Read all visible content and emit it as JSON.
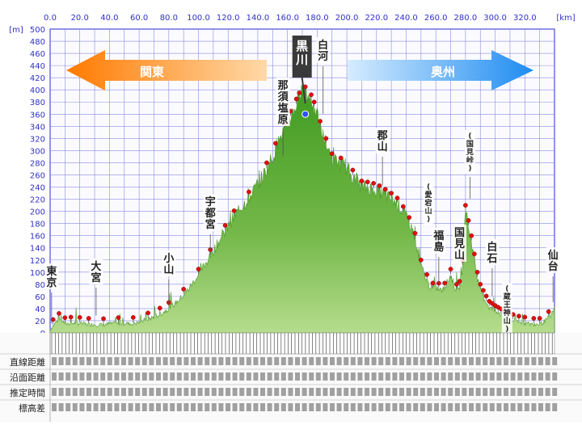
{
  "chart_data": {
    "type": "area",
    "x_unit": "[km]",
    "y_unit": "[m]",
    "xlim": [
      0,
      340
    ],
    "ylim": [
      0,
      500
    ],
    "x_ticks": [
      "0.0",
      "20.0",
      "40.0",
      "60.0",
      "80.0",
      "100.0",
      "120.0",
      "140.0",
      "160.0",
      "180.0",
      "200.0",
      "220.0",
      "240.0",
      "260.0",
      "280.0",
      "300.0",
      "320.0"
    ],
    "y_ticks": [
      "0",
      "20",
      "40",
      "60",
      "80",
      "100",
      "120",
      "140",
      "160",
      "180",
      "200",
      "220",
      "240",
      "260",
      "280",
      "300",
      "320",
      "340",
      "360",
      "380",
      "400",
      "420",
      "440",
      "460",
      "480",
      "500"
    ],
    "grid": true,
    "direction_left": "関東",
    "direction_right": "奥州",
    "top_label": "黒川",
    "profile": {
      "x": [
        0,
        2,
        4,
        6,
        8,
        10,
        14,
        18,
        22,
        26,
        30,
        35,
        40,
        45,
        50,
        55,
        60,
        65,
        70,
        75,
        80,
        85,
        90,
        95,
        100,
        105,
        110,
        115,
        120,
        125,
        130,
        135,
        140,
        145,
        150,
        155,
        160,
        163,
        166,
        169,
        172,
        174,
        176,
        178,
        180,
        183,
        186,
        190,
        195,
        200,
        205,
        210,
        215,
        220,
        225,
        230,
        235,
        240,
        245,
        250,
        255,
        258,
        260,
        263,
        266,
        268,
        270,
        272,
        274,
        276,
        278,
        280,
        282,
        284,
        286,
        288,
        290,
        293,
        296,
        300,
        305,
        310,
        315,
        320,
        325,
        330,
        334,
        338,
        340
      ],
      "y": [
        5,
        12,
        18,
        22,
        20,
        15,
        16,
        16,
        15,
        14,
        14,
        13,
        15,
        15,
        16,
        15,
        17,
        22,
        26,
        32,
        40,
        50,
        62,
        78,
        95,
        115,
        135,
        155,
        175,
        195,
        210,
        225,
        245,
        265,
        290,
        320,
        345,
        360,
        375,
        390,
        395,
        390,
        382,
        370,
        355,
        330,
        310,
        285,
        280,
        270,
        255,
        240,
        238,
        235,
        228,
        220,
        210,
        190,
        165,
        110,
        80,
        72,
        75,
        70,
        72,
        85,
        95,
        80,
        70,
        75,
        110,
        200,
        175,
        150,
        120,
        90,
        70,
        55,
        42,
        35,
        28,
        22,
        18,
        16,
        14,
        14,
        20,
        30,
        40
      ]
    },
    "places": [
      {
        "name": "東京",
        "x": 1,
        "y": 5
      },
      {
        "name": "大宮",
        "x": 31,
        "y": 18
      },
      {
        "name": "小山",
        "x": 80,
        "y": 38
      },
      {
        "name": "宇都宮",
        "x": 108,
        "y": 125
      },
      {
        "name": "那須塩原",
        "x": 157,
        "y": 280
      },
      {
        "name": "黒川",
        "x": 172,
        "y": 395
      },
      {
        "name": "白河",
        "x": 184,
        "y": 350
      },
      {
        "name": "郡山",
        "x": 224,
        "y": 232
      },
      {
        "name": "(愛宕山)",
        "x": 255,
        "y": 180
      },
      {
        "name": "福島",
        "x": 262,
        "y": 72
      },
      {
        "name": "(国見峠)",
        "x": 283,
        "y": 210
      },
      {
        "name": "国見山",
        "x": 276,
        "y": 140
      },
      {
        "name": "白石",
        "x": 298,
        "y": 50
      },
      {
        "name": "(蔵王神山)",
        "x": 308,
        "y": 36
      },
      {
        "name": "仙台",
        "x": 339,
        "y": 40
      }
    ],
    "table_row_labels": [
      "直線距離",
      "沿面距離",
      "推定時間",
      "標高差"
    ]
  }
}
